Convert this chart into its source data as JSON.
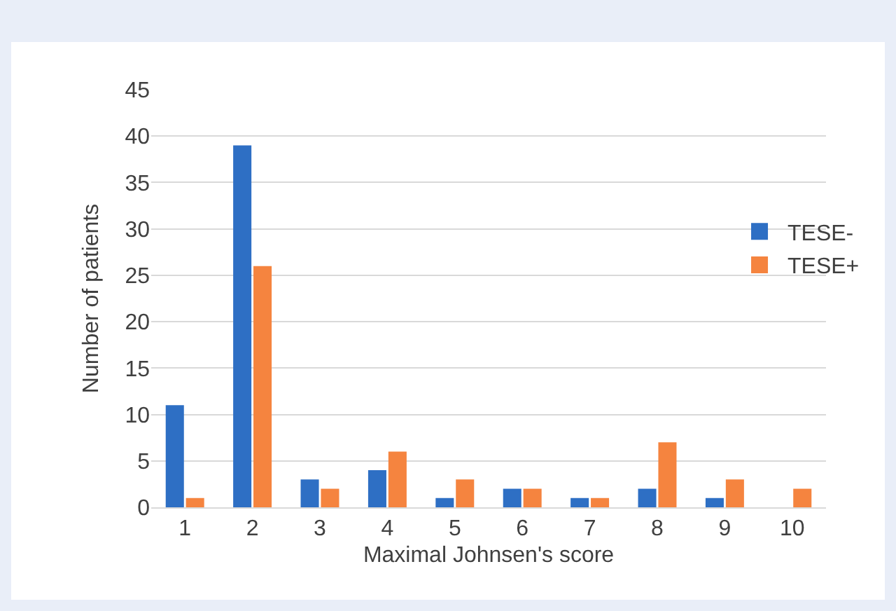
{
  "chart_data": {
    "type": "bar",
    "xlabel": "Maximal Johnsen's score",
    "ylabel": "Number of patients",
    "categories": [
      "1",
      "2",
      "3",
      "4",
      "5",
      "6",
      "7",
      "8",
      "9",
      "10"
    ],
    "series": [
      {
        "name": "TESE-",
        "color": "#2e6fc4",
        "values": [
          11,
          39,
          3,
          4,
          1,
          2,
          1,
          2,
          1,
          0
        ]
      },
      {
        "name": "TESE+",
        "color": "#f5843f",
        "values": [
          1,
          26,
          2,
          6,
          3,
          2,
          1,
          7,
          3,
          2
        ]
      }
    ],
    "ylim": [
      0,
      45
    ],
    "yticks": [
      0,
      5,
      10,
      15,
      20,
      25,
      30,
      35,
      40,
      45
    ],
    "grid": "y",
    "legend": "right"
  }
}
